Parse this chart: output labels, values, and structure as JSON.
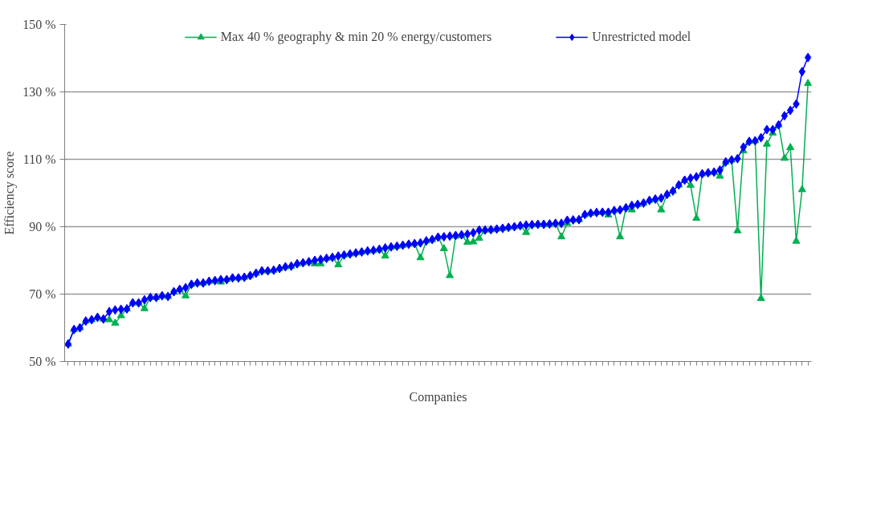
{
  "chart_data": {
    "type": "line",
    "xlabel": "Companies",
    "ylabel": "Efficiency score",
    "categories": [
      null,
      null,
      null,
      null,
      null,
      null,
      null,
      null,
      null,
      null,
      null,
      null,
      null,
      null,
      null,
      null,
      null,
      null,
      null,
      null,
      null,
      null,
      null,
      null,
      null,
      null,
      null,
      null,
      null,
      null,
      null,
      null,
      null,
      null,
      null,
      null,
      null,
      null,
      null,
      null,
      null,
      null,
      null,
      null,
      null,
      null,
      null,
      null,
      null,
      null,
      null,
      null,
      null,
      null,
      null,
      null,
      null,
      null,
      null,
      null,
      null,
      null,
      null,
      null,
      null,
      null,
      null,
      null,
      null,
      null,
      null,
      null,
      null,
      null,
      null,
      null,
      null,
      null,
      null,
      null,
      null,
      null,
      null,
      null,
      null,
      null,
      null,
      null,
      null,
      null,
      null,
      null,
      null,
      null,
      null,
      null,
      null,
      null,
      null,
      null,
      null,
      null,
      null,
      null,
      null,
      null,
      null,
      null,
      null,
      null,
      null,
      null,
      null,
      null,
      null,
      null,
      null,
      null,
      null,
      null,
      null,
      null,
      null,
      null,
      null,
      null,
      null
    ],
    "series": [
      {
        "name": "Max 40 % geography & min 20 % energy/customers",
        "color": "#00b050",
        "marker": "triangle",
        "values": [
          55.2,
          59.5,
          60,
          62,
          62.4,
          63.1,
          62.6,
          62.4,
          61.4,
          63.6,
          65.6,
          67.4,
          67.4,
          65.7,
          69,
          69,
          69.5,
          69.3,
          70.7,
          71.4,
          69.5,
          72.9,
          73.3,
          73.3,
          73.8,
          74,
          73.6,
          74.3,
          74.8,
          74.8,
          75,
          75.5,
          76.2,
          76.9,
          76.9,
          77.1,
          77.6,
          78.1,
          78.3,
          79,
          79.3,
          79.6,
          79,
          79,
          80.6,
          80.9,
          78.7,
          81.6,
          81.9,
          82.2,
          82.5,
          82.8,
          83,
          83.3,
          81.3,
          84,
          84.2,
          84.5,
          84.8,
          85,
          80.8,
          85.8,
          86.2,
          86.9,
          83.5,
          75.5,
          87.2,
          87.4,
          85.4,
          85.5,
          86.6,
          89,
          89.1,
          89.3,
          89.5,
          89.8,
          90,
          90.3,
          88.3,
          90.6,
          90.7,
          90.7,
          90.8,
          91,
          87,
          91,
          92,
          92.1,
          93.6,
          94,
          94.2,
          94.3,
          93.5,
          94.8,
          87,
          95.6,
          95,
          96.6,
          97,
          97.8,
          98.2,
          95,
          99.6,
          100.6,
          102.4,
          103.8,
          102.3,
          92.5,
          105.7,
          106,
          106.2,
          105,
          109.2,
          109.8,
          88.8,
          112.5,
          115.3,
          115.5,
          68.7,
          114.5,
          117.8,
          120.2,
          110.3,
          113.5,
          85.7,
          101,
          132.5
        ]
      },
      {
        "name": "Unrestricted model",
        "color": "#0000ff",
        "marker": "diamond",
        "values": [
          55.2,
          59.5,
          60,
          62,
          62.4,
          63.1,
          62.6,
          64.8,
          65.3,
          65.5,
          65.6,
          67.4,
          67.4,
          68.3,
          69,
          69,
          69.5,
          69.3,
          70.7,
          71.4,
          71.9,
          72.9,
          73.3,
          73.3,
          73.8,
          74,
          74.3,
          74.3,
          74.8,
          74.8,
          75,
          75.5,
          76.2,
          76.9,
          76.9,
          77.1,
          77.6,
          78.1,
          78.3,
          79,
          79.3,
          79.6,
          80,
          80.3,
          80.6,
          80.9,
          81.3,
          81.6,
          81.9,
          82.2,
          82.5,
          82.8,
          83,
          83.3,
          83.7,
          84,
          84.2,
          84.5,
          84.8,
          85,
          85.2,
          85.8,
          86.2,
          86.9,
          87,
          87.2,
          87.4,
          87.6,
          87.8,
          88.2,
          89,
          89,
          89.1,
          89.3,
          89.5,
          89.8,
          90,
          90.3,
          90.5,
          90.6,
          90.7,
          90.7,
          90.8,
          91,
          91,
          91.9,
          92,
          92.1,
          93.6,
          94,
          94.2,
          94.3,
          94.3,
          94.8,
          95,
          95.6,
          96.3,
          96.6,
          97,
          97.8,
          98.2,
          98.5,
          99.6,
          100.6,
          102.4,
          103.8,
          104.4,
          104.8,
          105.7,
          106,
          106.2,
          106.8,
          109.2,
          109.8,
          110.2,
          113.6,
          115.3,
          115.5,
          116.4,
          118.8,
          118.8,
          120.2,
          122.9,
          124.5,
          126.4,
          136,
          140.2
        ]
      }
    ],
    "ylim": [
      50,
      150
    ],
    "yticks": [
      {
        "value": 50,
        "label": "50 %"
      },
      {
        "value": 70,
        "label": "70 %"
      },
      {
        "value": 90,
        "label": "90 %"
      },
      {
        "value": 110,
        "label": "110 %"
      },
      {
        "value": 130,
        "label": "130 %"
      },
      {
        "value": 150,
        "label": "150 %"
      }
    ],
    "grid": "y",
    "legend": "top"
  }
}
